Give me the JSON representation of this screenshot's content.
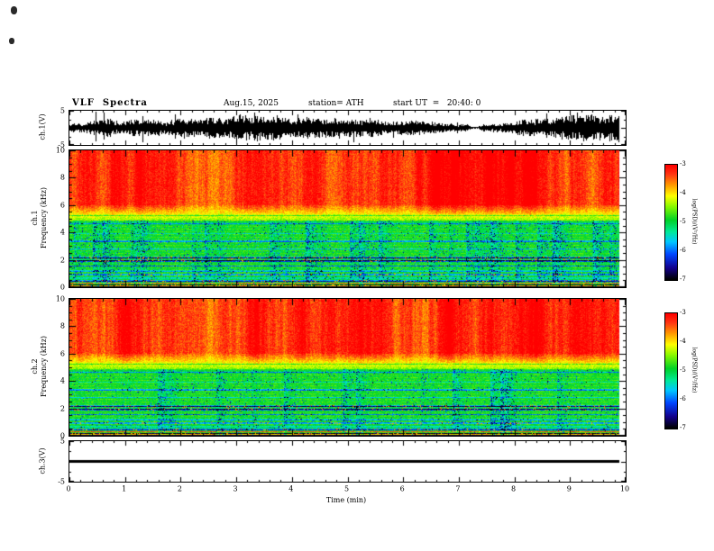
{
  "header": {
    "title": "VLF  Spectra",
    "date": "Aug.15, 2025",
    "station": "station= ATH",
    "start_ut": "start UT  =   20:40: 0"
  },
  "xaxis": {
    "label": "Time (min)",
    "ticks": [
      "0",
      "1",
      "2",
      "3",
      "4",
      "5",
      "6",
      "7",
      "8",
      "9",
      "10"
    ],
    "xlim": [
      0,
      10
    ]
  },
  "panels": {
    "ch1_wave": {
      "ylabel": "ch.1(V)",
      "yticks": [
        "5",
        "-5"
      ],
      "ytick_values": [
        5,
        -5
      ],
      "ylim": [
        -5,
        5
      ]
    },
    "ch1_spec": {
      "ylabel_line1": "ch.1",
      "ylabel_line2": "Frequency (kHz)",
      "yticks": [
        "10",
        "8",
        "6",
        "4",
        "2",
        "0"
      ],
      "ytick_values": [
        10,
        8,
        6,
        4,
        2,
        0
      ],
      "ylim": [
        0,
        10
      ]
    },
    "ch2_spec": {
      "ylabel_line1": "ch.2",
      "ylabel_line2": "Frequency (kHz)",
      "yticks": [
        "10",
        "8",
        "6",
        "4",
        "2",
        "0"
      ],
      "ytick_values": [
        10,
        8,
        6,
        4,
        2,
        0
      ],
      "ylim": [
        0,
        10
      ]
    },
    "ch3_wave": {
      "ylabel": "ch.3(V)",
      "yticks": [
        "5",
        "-5"
      ],
      "ytick_values": [
        5,
        -5
      ],
      "ylim": [
        -5,
        5
      ]
    }
  },
  "colorbar": {
    "label": "log(PSD)/(V²/Hz)",
    "ticks": [
      "-3",
      "-4",
      "-5",
      "-6",
      "-7"
    ],
    "tick_values": [
      -3,
      -4,
      -5,
      -6,
      -7
    ],
    "range": [
      -7,
      -3
    ],
    "colors_top_to_bottom": [
      "#ff0000",
      "#ff9600",
      "#ffff00",
      "#00d200",
      "#00c8ff",
      "#0046ff",
      "#000000"
    ]
  },
  "chart_data": [
    {
      "type": "line",
      "name": "ch.1 time series",
      "xlabel": "Time (min)",
      "xlim": [
        0,
        10
      ],
      "ylabel": "ch.1(V)",
      "ylim": [
        -5,
        5
      ],
      "description": "Dense broadband noise waveform centred on 0 V; envelope mostly ±1–2 V with frequent bursts reaching ±4–5 V; trace runs from 0 to ≈9.8 min."
    },
    {
      "type": "heatmap",
      "name": "ch.1 spectrogram",
      "xlabel": "Time (min)",
      "xlim": [
        0,
        10
      ],
      "ylabel": "ch.1 Frequency (kHz)",
      "ylim": [
        0,
        10
      ],
      "colorbar_label": "log(PSD)/(V²/Hz)",
      "colorbar_range": [
        -7,
        -3
      ],
      "features": [
        "log PSD ≈ -3 (red) above ~6 kHz with vertical burst striations",
        "yellow transition band ~5–6 kHz",
        "log PSD ≈ -5 (green) from ~0.5 to 5 kHz",
        "thin dark horizontal interference lines near 5.2, 4.6, 3.3 and 2.8 kHz",
        "broad dark band with red speckles at ~1.9–2.2 kHz",
        "dark lines near 1.5, 1.2, 0.9, 0.65 and 0.45 kHz",
        "near-black band below ~0.2 kHz with thin red lines",
        "scattered cyan/blue low-power pixels through the green region",
        "data column ends at ≈9.8 min, white gap before right axis"
      ]
    },
    {
      "type": "heatmap",
      "name": "ch.2 spectrogram",
      "xlabel": "Time (min)",
      "xlim": [
        0,
        10
      ],
      "ylabel": "ch.2 Frequency (kHz)",
      "ylim": [
        0,
        10
      ],
      "colorbar_label": "log(PSD)/(V²/Hz)",
      "colorbar_range": [
        -7,
        -3
      ],
      "features": [
        "log PSD ≈ -3 (red) above ~6 kHz with vertical burst striations",
        "yellow transition band ~5–6 kHz",
        "log PSD ≈ -5 (green) below ~5 kHz",
        "dark horizontal interference lines near 5.2, 4.6, 3.3 kHz",
        "broad dark band with red speckles at ~1.9–2.2 kHz",
        "dark lines near 1.2, 0.9, 0.45 kHz and near-black band below ~0.2 kHz"
      ]
    },
    {
      "type": "line",
      "name": "ch.3 time series",
      "xlabel": "Time (min)",
      "xlim": [
        0,
        10
      ],
      "ylabel": "ch.3(V)",
      "ylim": [
        -5,
        5
      ],
      "description": "Flat thick black line at 0 V from 0 to ≈9.8 min (no signal)."
    }
  ]
}
